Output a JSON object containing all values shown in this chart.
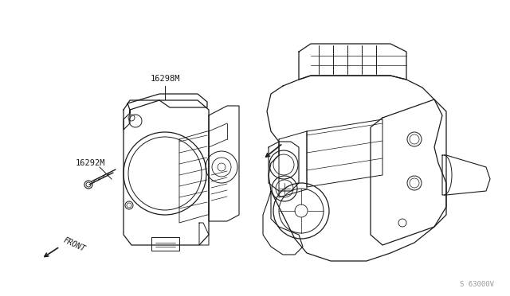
{
  "bg_color": "#ffffff",
  "line_color": "#1a1a1a",
  "label_color": "#1a1a1a",
  "watermark_color": "#999999",
  "label_16298M": "16298M",
  "label_16292M": "16292M",
  "label_front": "FRONT",
  "watermark": "S 63000V",
  "fig_width": 6.4,
  "fig_height": 3.72,
  "dpi": 100
}
